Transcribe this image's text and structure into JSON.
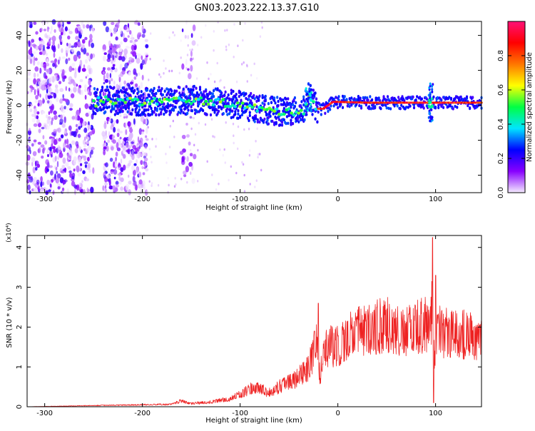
{
  "page": {
    "title": "GN03.2023.222.13.37.G10"
  },
  "chart_data": [
    {
      "type": "heatmap",
      "title": "GN03.2023.222.13.37.G10",
      "xlabel": "Height of straight line (km)",
      "ylabel": "Frequency (Hz)",
      "xlim": [
        -318,
        147
      ],
      "ylim": [
        -50,
        48
      ],
      "xticks": [
        -300,
        -200,
        -100,
        0,
        100
      ],
      "xtick_labels": [
        "-300",
        "-200",
        "-100",
        "0",
        "100"
      ],
      "yticks": [
        -40,
        -20,
        0,
        20,
        40
      ],
      "ytick_labels": [
        "-40",
        "-20",
        "0",
        "20",
        "40"
      ],
      "colorbar": {
        "label": "Normalized spectral amplitude",
        "range": [
          0,
          1
        ],
        "ticks": [
          0.0,
          0.2,
          0.4,
          0.6,
          0.8
        ],
        "tick_labels": [
          "0.0",
          "0.2",
          "0.4",
          "0.6",
          "0.8"
        ],
        "colormap": [
          "#f5ecff",
          "#8800ff",
          "#0000ff",
          "#00e5ff",
          "#00ff44",
          "#ffff00",
          "#ff7700",
          "#ff0000",
          "#ff1177"
        ]
      },
      "features": {
        "noise_bands_x": [
          [
            -318,
            -250
          ],
          [
            -240,
            -195
          ],
          [
            -160,
            -145
          ]
        ],
        "signal_track": [
          {
            "x": -245,
            "f": 3
          },
          {
            "x": -200,
            "f": 2
          },
          {
            "x": -150,
            "f": 3
          },
          {
            "x": -110,
            "f": 1
          },
          {
            "x": -90,
            "f": -1
          },
          {
            "x": -70,
            "f": -3
          },
          {
            "x": -50,
            "f": -4
          },
          {
            "x": -35,
            "f": -3
          },
          {
            "x": -30,
            "f": 6
          },
          {
            "x": -22,
            "f": -2
          },
          {
            "x": -15,
            "f": -2
          },
          {
            "x": -5,
            "f": 2
          },
          {
            "x": 30,
            "f": 1.5
          },
          {
            "x": 90,
            "f": 1.5
          },
          {
            "x": 100,
            "f": 1.5
          },
          {
            "x": 147,
            "f": 1.5
          }
        ],
        "burst_x": 95
      }
    },
    {
      "type": "line",
      "xlabel": "Height of straight line (km)",
      "ylabel": "SNR (10 * v/v)",
      "y_multiplier": "(x10⁴)",
      "xlim": [
        -318,
        147
      ],
      "ylim": [
        0,
        4.3
      ],
      "xticks": [
        -300,
        -200,
        -100,
        0,
        100
      ],
      "xtick_labels": [
        "-300",
        "-200",
        "-100",
        "0",
        "100"
      ],
      "yticks": [
        0,
        1,
        2,
        3,
        4
      ],
      "ytick_labels": [
        "0",
        "1",
        "2",
        "3",
        "4"
      ],
      "series": [
        {
          "color": "#ee2222",
          "envelope": {
            "x": [
              -318,
              -250,
              -200,
              -170,
              -160,
              -150,
              -130,
              -110,
              -100,
              -90,
              -80,
              -70,
              -60,
              -50,
              -40,
              -30,
              -25,
              -22,
              -20,
              -18,
              -15,
              -10,
              0,
              10,
              20,
              30,
              40,
              50,
              60,
              70,
              80,
              90,
              94,
              97,
              99,
              101,
              103,
              110,
              120,
              130,
              147
            ],
            "y": [
              0.0,
              0.03,
              0.05,
              0.06,
              0.15,
              0.08,
              0.12,
              0.2,
              0.3,
              0.45,
              0.45,
              0.35,
              0.5,
              0.6,
              0.75,
              1.0,
              1.3,
              1.7,
              1.2,
              0.8,
              1.3,
              1.5,
              1.55,
              1.75,
              1.85,
              1.95,
              2.0,
              2.05,
              2.0,
              1.9,
              2.0,
              2.05,
              2.1,
              2.5,
              1.0,
              1.8,
              1.9,
              1.85,
              1.85,
              1.8,
              1.75
            ]
          },
          "spikes": [
            {
              "x": -20,
              "y": 2.6
            },
            {
              "x": -24,
              "y": 1.9
            },
            {
              "x": 20,
              "y": 2.2
            },
            {
              "x": 40,
              "y": 2.5
            },
            {
              "x": 97,
              "y": 4.25
            },
            {
              "x": 100,
              "y": 3.3
            },
            {
              "x": 98,
              "y": 0.1
            }
          ]
        }
      ]
    }
  ]
}
